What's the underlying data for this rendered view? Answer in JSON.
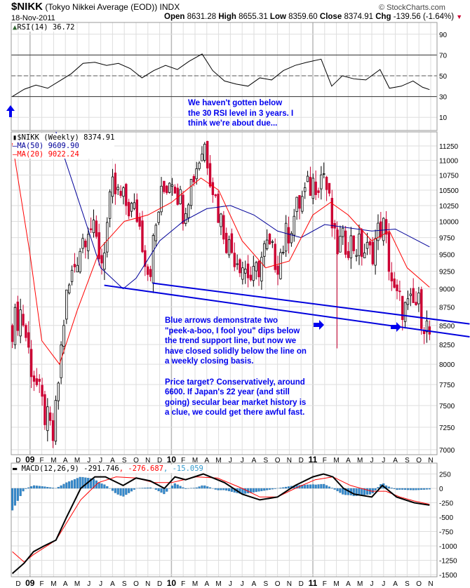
{
  "header": {
    "symbol": "$NIKK",
    "name": "(Tokyo Nikkei Average (EOD))",
    "exchange": "INDX",
    "copyright": "© StockCharts.com",
    "date": "18-Nov-2011",
    "open_label": "Open",
    "open": "8631.28",
    "high_label": "High",
    "high": "8655.31",
    "low_label": "Low",
    "low": "8359.60",
    "close_label": "Close",
    "close": "8374.91",
    "chg_label": "Chg",
    "chg": "-139.56 (-1.64%)"
  },
  "legends": {
    "rsi": "RSI(14) 36.72",
    "price": "$NIKK (Weekly) 8374.91",
    "ma50": "MA(50) 9609.90",
    "ma20": "MA(20) 9022.24",
    "macd_name": "MACD(12,26,9)",
    "macd_val": "-291.746",
    "macd_sig": ", -276.687",
    "macd_hist": ", -15.059"
  },
  "annotations": {
    "rsi_note": "We haven't gotten below\nthe 30 RSI level in 3 years. I\nthink we're about due...",
    "price_note": "Blue arrows demonstrate two\n\"peek-a-boo, I fool you\" dips below\nthe trend support line, but now we\nhave closed solidly below the line on\na weekly closing basis.\n\nPrice target? Conservatively, around\n6600. If Japan's 22 year (and still\ngoing) secular bear market history is\na clue, we could get there awful fast."
  },
  "colors": {
    "up": "#000000",
    "down": "#cc0033",
    "ma50": "#000099",
    "ma20": "#ff0000",
    "trend": "#0000dd",
    "hist": "#3388cc",
    "macd": "#000000",
    "signal": "#ff0000"
  },
  "chart_data": {
    "type": "candlestick",
    "x_unit": "months from Dec 2008",
    "month_labels": [
      "D",
      "09",
      "F",
      "M",
      "A",
      "M",
      "J",
      "J",
      "A",
      "S",
      "O",
      "N",
      "D",
      "10",
      "F",
      "M",
      "A",
      "M",
      "J",
      "J",
      "A",
      "S",
      "O",
      "N",
      "D",
      "11",
      "F",
      "M",
      "A",
      "M",
      "J",
      "J",
      "A",
      "S",
      "O",
      "N"
    ],
    "price": {
      "scale": "log",
      "ylim": [
        7000,
        11500
      ],
      "ticks": [
        7000,
        7250,
        7500,
        7750,
        8000,
        8250,
        8500,
        8750,
        9000,
        9250,
        9500,
        9750,
        10000,
        10250,
        10500,
        10750,
        11000,
        11250
      ],
      "close_anchors": [
        [
          -0.5,
          8500
        ],
        [
          0.25,
          8700
        ],
        [
          1.07,
          8000
        ],
        [
          2.0,
          7500
        ],
        [
          3.0,
          7100
        ],
        [
          4.0,
          8800
        ],
        [
          5.0,
          9500
        ],
        [
          6.0,
          10000
        ],
        [
          7.1,
          9400
        ],
        [
          8.0,
          10500
        ],
        [
          9.0,
          10300
        ],
        [
          10.1,
          10100
        ],
        [
          11.1,
          9200
        ],
        [
          12.0,
          10300
        ],
        [
          13.0,
          10800
        ],
        [
          14.0,
          10200
        ],
        [
          15.1,
          10900
        ],
        [
          15.8,
          11300
        ],
        [
          16.9,
          10200
        ],
        [
          17.9,
          9600
        ],
        [
          18.9,
          9400
        ],
        [
          19.9,
          9100
        ],
        [
          21.0,
          9600
        ],
        [
          22.0,
          9400
        ],
        [
          23.0,
          9900
        ],
        [
          23.9,
          10300
        ],
        [
          24.9,
          10600
        ],
        [
          25.95,
          10800
        ],
        [
          26.9,
          9600
        ],
        [
          27.9,
          9700
        ],
        [
          28.9,
          9600
        ],
        [
          29.9,
          9500
        ],
        [
          30.9,
          10000
        ],
        [
          31.9,
          8900
        ],
        [
          32.9,
          8700
        ],
        [
          33.9,
          8800
        ],
        [
          34.9,
          8375
        ]
      ],
      "ma50": [
        [
          3.2,
          11500
        ],
        [
          5,
          10400
        ],
        [
          7,
          9300
        ],
        [
          8.9,
          9000
        ],
        [
          10,
          9150
        ],
        [
          12,
          9700
        ],
        [
          14,
          10000
        ],
        [
          16,
          10200
        ],
        [
          18,
          10250
        ],
        [
          20,
          10100
        ],
        [
          22,
          9850
        ],
        [
          24,
          9750
        ],
        [
          26,
          9950
        ],
        [
          28,
          9900
        ],
        [
          30,
          9850
        ],
        [
          32,
          9880
        ],
        [
          34.9,
          9610
        ]
      ],
      "ma20": [
        [
          -0.5,
          11300
        ],
        [
          1,
          9500
        ],
        [
          2,
          8300
        ],
        [
          3.5,
          8000
        ],
        [
          5,
          8700
        ],
        [
          7,
          9600
        ],
        [
          9,
          10000
        ],
        [
          11,
          10100
        ],
        [
          13,
          10300
        ],
        [
          15.5,
          10700
        ],
        [
          17,
          10500
        ],
        [
          19,
          9700
        ],
        [
          21,
          9300
        ],
        [
          23,
          9400
        ],
        [
          25,
          10100
        ],
        [
          26.5,
          10300
        ],
        [
          28,
          10100
        ],
        [
          30,
          9700
        ],
        [
          31.5,
          9850
        ],
        [
          33,
          9300
        ],
        [
          34.9,
          9022
        ]
      ],
      "trend_lines": [
        [
          [
            7.3,
            9050
          ],
          [
            38.3,
            8350
          ]
        ],
        [
          [
            11.4,
            9080
          ],
          [
            38.3,
            8520
          ]
        ]
      ]
    },
    "rsi": {
      "ylim": [
        0,
        100
      ],
      "ticks": [
        90,
        70,
        50,
        30,
        10
      ],
      "last": 36.72,
      "values": [
        [
          -0.5,
          30
        ],
        [
          0.5,
          37
        ],
        [
          1.5,
          41
        ],
        [
          2.5,
          38
        ],
        [
          3.5,
          45
        ],
        [
          4.5,
          52
        ],
        [
          5.5,
          62
        ],
        [
          6.5,
          63
        ],
        [
          7.5,
          60
        ],
        [
          8.5,
          62
        ],
        [
          9.5,
          57
        ],
        [
          10.5,
          48
        ],
        [
          11.5,
          55
        ],
        [
          12.5,
          60
        ],
        [
          13.5,
          56
        ],
        [
          14.5,
          64
        ],
        [
          15.6,
          71
        ],
        [
          16.5,
          55
        ],
        [
          17.5,
          45
        ],
        [
          18.5,
          42
        ],
        [
          19.5,
          40
        ],
        [
          20.5,
          48
        ],
        [
          21.5,
          46
        ],
        [
          22.5,
          55
        ],
        [
          23.5,
          60
        ],
        [
          24.5,
          63
        ],
        [
          25.7,
          66
        ],
        [
          26.6,
          40
        ],
        [
          27.5,
          50
        ],
        [
          28.5,
          47
        ],
        [
          29.5,
          46
        ],
        [
          30.7,
          56
        ],
        [
          31.5,
          38
        ],
        [
          32.5,
          40
        ],
        [
          33.5,
          45
        ],
        [
          34.3,
          39
        ],
        [
          34.9,
          36.7
        ]
      ]
    },
    "macd": {
      "ylim": [
        -1550,
        350
      ],
      "ticks": [
        250,
        0,
        -250,
        -500,
        -750,
        -1000,
        -1250,
        -1500
      ],
      "macd": [
        [
          -0.5,
          -1480
        ],
        [
          0.5,
          -1300
        ],
        [
          1.3,
          -1100
        ],
        [
          2.2,
          -1000
        ],
        [
          3.2,
          -900
        ],
        [
          4.1,
          -500
        ],
        [
          5.3,
          0
        ],
        [
          6.5,
          200
        ],
        [
          7.4,
          200
        ],
        [
          8.9,
          50
        ],
        [
          10,
          180
        ],
        [
          11.2,
          130
        ],
        [
          12.4,
          0
        ],
        [
          13.3,
          200
        ],
        [
          14.2,
          150
        ],
        [
          15.7,
          250
        ],
        [
          17.5,
          100
        ],
        [
          19,
          -100
        ],
        [
          20.5,
          -200
        ],
        [
          22,
          -150
        ],
        [
          23.5,
          50
        ],
        [
          25,
          200
        ],
        [
          25.9,
          250
        ],
        [
          26.7,
          200
        ],
        [
          27.6,
          0
        ],
        [
          28.5,
          -100
        ],
        [
          30,
          -150
        ],
        [
          30.9,
          50
        ],
        [
          32.1,
          -150
        ],
        [
          33.6,
          -250
        ],
        [
          34.9,
          -292
        ]
      ],
      "signal": [
        [
          -0.5,
          -1100
        ],
        [
          0.5,
          -1280
        ],
        [
          1.3,
          -1150
        ],
        [
          3.2,
          -900
        ],
        [
          4.1,
          -600
        ],
        [
          5.3,
          -200
        ],
        [
          6.8,
          100
        ],
        [
          8.3,
          200
        ],
        [
          10,
          180
        ],
        [
          11.5,
          100
        ],
        [
          13,
          100
        ],
        [
          15.1,
          200
        ],
        [
          16.9,
          180
        ],
        [
          19,
          0
        ],
        [
          20.5,
          -150
        ],
        [
          22,
          -150
        ],
        [
          23.5,
          0
        ],
        [
          25.2,
          150
        ],
        [
          26.7,
          200
        ],
        [
          28.2,
          50
        ],
        [
          30,
          -50
        ],
        [
          31.2,
          -50
        ],
        [
          32.4,
          -150
        ],
        [
          33.6,
          -220
        ],
        [
          34.9,
          -277
        ]
      ]
    }
  }
}
